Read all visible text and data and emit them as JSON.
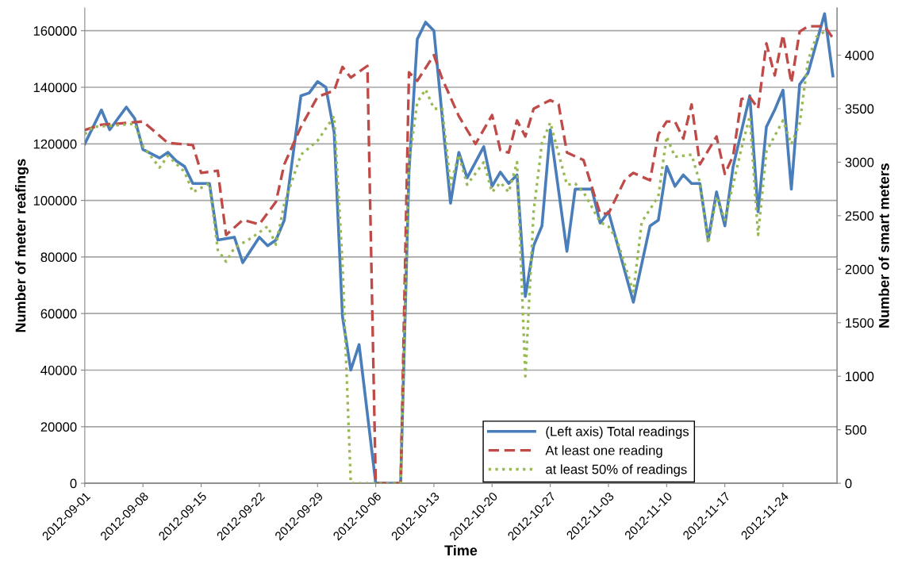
{
  "chart_data": {
    "type": "line",
    "xlabel": "Time",
    "ylabel": "Number of meter reafings",
    "y2label": "Number of smart meters",
    "xlim": [
      "2012-09-01",
      "2012-11-30T12:00"
    ],
    "xticks": [
      "2012-09-01",
      "2012-09-08",
      "2012-09-15",
      "2012-09-22",
      "2012-09-29",
      "2012-10-06",
      "2012-10-13",
      "2012-10-20",
      "2012-10-27",
      "2012-11-03",
      "2012-11-10",
      "2012-11-17",
      "2012-11-24"
    ],
    "ylim": [
      0,
      168000
    ],
    "yticks": [
      0,
      20000,
      40000,
      60000,
      80000,
      100000,
      120000,
      140000,
      160000
    ],
    "y2lim": [
      0,
      4440
    ],
    "y2ticks": [
      0,
      500,
      1000,
      1500,
      2000,
      2500,
      3000,
      3500,
      4000
    ],
    "grid": "y",
    "legend": "bottom",
    "marker": "none",
    "series": [
      {
        "name": "(Left axis) Total readings",
        "color": "#4a7ebb",
        "line_style": "solid",
        "x": [
          "2012-09-01",
          "2012-09-03",
          "2012-09-04",
          "2012-09-06",
          "2012-09-07",
          "2012-09-08",
          "2012-09-10",
          "2012-09-11",
          "2012-09-12",
          "2012-09-13",
          "2012-09-14",
          "2012-09-16",
          "2012-09-17",
          "2012-09-19",
          "2012-09-20",
          "2012-09-22",
          "2012-09-23",
          "2012-09-24",
          "2012-09-25",
          "2012-09-26",
          "2012-09-27",
          "2012-09-28",
          "2012-09-29",
          "2012-09-30",
          "2012-10-01",
          "2012-10-02",
          "2012-10-03",
          "2012-10-04",
          "2012-10-06",
          "2012-10-07",
          "2012-10-08",
          "2012-10-09",
          "2012-10-10",
          "2012-10-11",
          "2012-10-12",
          "2012-10-13",
          "2012-10-15",
          "2012-10-16",
          "2012-10-17",
          "2012-10-19",
          "2012-10-20",
          "2012-10-21",
          "2012-10-22",
          "2012-10-23",
          "2012-10-24",
          "2012-10-25",
          "2012-10-26",
          "2012-10-27",
          "2012-10-29",
          "2012-10-30",
          "2012-11-01",
          "2012-11-02",
          "2012-11-03",
          "2012-11-06",
          "2012-11-08",
          "2012-11-09",
          "2012-11-10",
          "2012-11-11",
          "2012-11-12",
          "2012-11-13",
          "2012-11-14",
          "2012-11-15",
          "2012-11-16",
          "2012-11-17",
          "2012-11-18",
          "2012-11-20",
          "2012-11-21",
          "2012-11-22",
          "2012-11-23",
          "2012-11-24",
          "2012-11-25",
          "2012-11-26",
          "2012-11-27",
          "2012-11-29",
          "2012-11-30"
        ],
        "values": [
          120000,
          132000,
          125000,
          133000,
          129000,
          118000,
          115000,
          117000,
          114000,
          112000,
          106000,
          106000,
          86000,
          87000,
          78000,
          87000,
          84000,
          86000,
          93000,
          115000,
          137000,
          138000,
          142000,
          140000,
          124000,
          59000,
          40000,
          49000,
          0,
          0,
          0,
          0,
          110000,
          157000,
          163000,
          160000,
          99000,
          117000,
          108000,
          119000,
          105000,
          110000,
          106000,
          109000,
          66000,
          84000,
          91000,
          125000,
          82000,
          104000,
          104000,
          92000,
          96000,
          64000,
          91000,
          93000,
          112000,
          105000,
          109000,
          106000,
          106000,
          86000,
          103000,
          91000,
          112000,
          137000,
          96000,
          126000,
          132000,
          139000,
          104000,
          141000,
          145000,
          166000,
          144000
        ]
      },
      {
        "name": "At least one reading",
        "color": "#be4b48",
        "line_style": "dashed",
        "axis": "y2",
        "x": [
          "2012-09-01",
          "2012-09-03",
          "2012-09-05",
          "2012-09-08",
          "2012-09-11",
          "2012-09-14",
          "2012-09-15",
          "2012-09-17",
          "2012-09-18",
          "2012-09-20",
          "2012-09-22",
          "2012-09-24",
          "2012-09-25",
          "2012-09-27",
          "2012-09-29",
          "2012-10-01",
          "2012-10-02",
          "2012-10-03",
          "2012-10-05",
          "2012-10-06",
          "2012-10-07",
          "2012-10-08",
          "2012-10-09",
          "2012-10-10",
          "2012-10-11",
          "2012-10-13",
          "2012-10-14",
          "2012-10-16",
          "2012-10-18",
          "2012-10-20",
          "2012-10-21",
          "2012-10-22",
          "2012-10-23",
          "2012-10-24",
          "2012-10-25",
          "2012-10-27",
          "2012-10-28",
          "2012-10-29",
          "2012-10-31",
          "2012-11-02",
          "2012-11-03",
          "2012-11-05",
          "2012-11-06",
          "2012-11-08",
          "2012-11-09",
          "2012-11-10",
          "2012-11-11",
          "2012-11-12",
          "2012-11-13",
          "2012-11-14",
          "2012-11-16",
          "2012-11-17",
          "2012-11-18",
          "2012-11-19",
          "2012-11-20",
          "2012-11-21",
          "2012-11-22",
          "2012-11-23",
          "2012-11-24",
          "2012-11-25",
          "2012-11-26",
          "2012-11-27",
          "2012-11-29",
          "2012-11-30"
        ],
        "values": [
          3300,
          3350,
          3360,
          3380,
          3180,
          3160,
          2900,
          2920,
          2320,
          2460,
          2420,
          2630,
          2980,
          3330,
          3610,
          3670,
          3890,
          3790,
          3900,
          0,
          0,
          0,
          0,
          3840,
          3760,
          4000,
          3780,
          3430,
          3170,
          3440,
          3110,
          3090,
          3390,
          3240,
          3500,
          3580,
          3540,
          3090,
          3020,
          2520,
          2520,
          2840,
          2900,
          2830,
          3260,
          3380,
          3380,
          3220,
          3540,
          2980,
          3240,
          2890,
          3060,
          3590,
          3610,
          3500,
          4110,
          3810,
          4190,
          3740,
          4220,
          4270,
          4270,
          4160
        ]
      },
      {
        "name": "at least 50% of readings",
        "color": "#98b954",
        "line_style": "dotted",
        "axis": "y2",
        "x": [
          "2012-09-01",
          "2012-09-02",
          "2012-09-04",
          "2012-09-07",
          "2012-09-08",
          "2012-09-10",
          "2012-09-11",
          "2012-09-13",
          "2012-09-14",
          "2012-09-16",
          "2012-09-17",
          "2012-09-18",
          "2012-09-19",
          "2012-09-21",
          "2012-09-23",
          "2012-09-24",
          "2012-09-25",
          "2012-09-27",
          "2012-09-29",
          "2012-10-01",
          "2012-10-02",
          "2012-10-03",
          "2012-10-04",
          "2012-10-05",
          "2012-10-06",
          "2012-10-07",
          "2012-10-08",
          "2012-10-09",
          "2012-10-10",
          "2012-10-11",
          "2012-10-12",
          "2012-10-13",
          "2012-10-14",
          "2012-10-15",
          "2012-10-16",
          "2012-10-17",
          "2012-10-19",
          "2012-10-20",
          "2012-10-21",
          "2012-10-22",
          "2012-10-23",
          "2012-10-24",
          "2012-10-25",
          "2012-10-26",
          "2012-10-27",
          "2012-10-29",
          "2012-10-30",
          "2012-10-31",
          "2012-11-02",
          "2012-11-03",
          "2012-11-04",
          "2012-11-06",
          "2012-11-07",
          "2012-11-09",
          "2012-11-10",
          "2012-11-11",
          "2012-11-13",
          "2012-11-14",
          "2012-11-15",
          "2012-11-16",
          "2012-11-17",
          "2012-11-19",
          "2012-11-20",
          "2012-11-21",
          "2012-11-22",
          "2012-11-24",
          "2012-11-25",
          "2012-11-26",
          "2012-11-27",
          "2012-11-28",
          "2012-11-29"
        ],
        "values": [
          3260,
          3330,
          3340,
          3360,
          3150,
          2950,
          3060,
          2910,
          2720,
          2800,
          2180,
          2070,
          2200,
          2290,
          2400,
          2230,
          2610,
          3070,
          3200,
          3430,
          2050,
          0,
          0,
          0,
          0,
          0,
          0,
          0,
          3000,
          3560,
          3680,
          3500,
          3500,
          2790,
          3070,
          2790,
          3000,
          2720,
          2810,
          2720,
          3000,
          1000,
          2540,
          3180,
          3370,
          2790,
          2800,
          2720,
          2440,
          2400,
          2280,
          1790,
          2440,
          2680,
          3240,
          3050,
          3070,
          2810,
          2240,
          2680,
          2460,
          3130,
          3430,
          2320,
          3100,
          3390,
          3170,
          3360,
          3950,
          4170,
          4220
        ]
      }
    ]
  }
}
